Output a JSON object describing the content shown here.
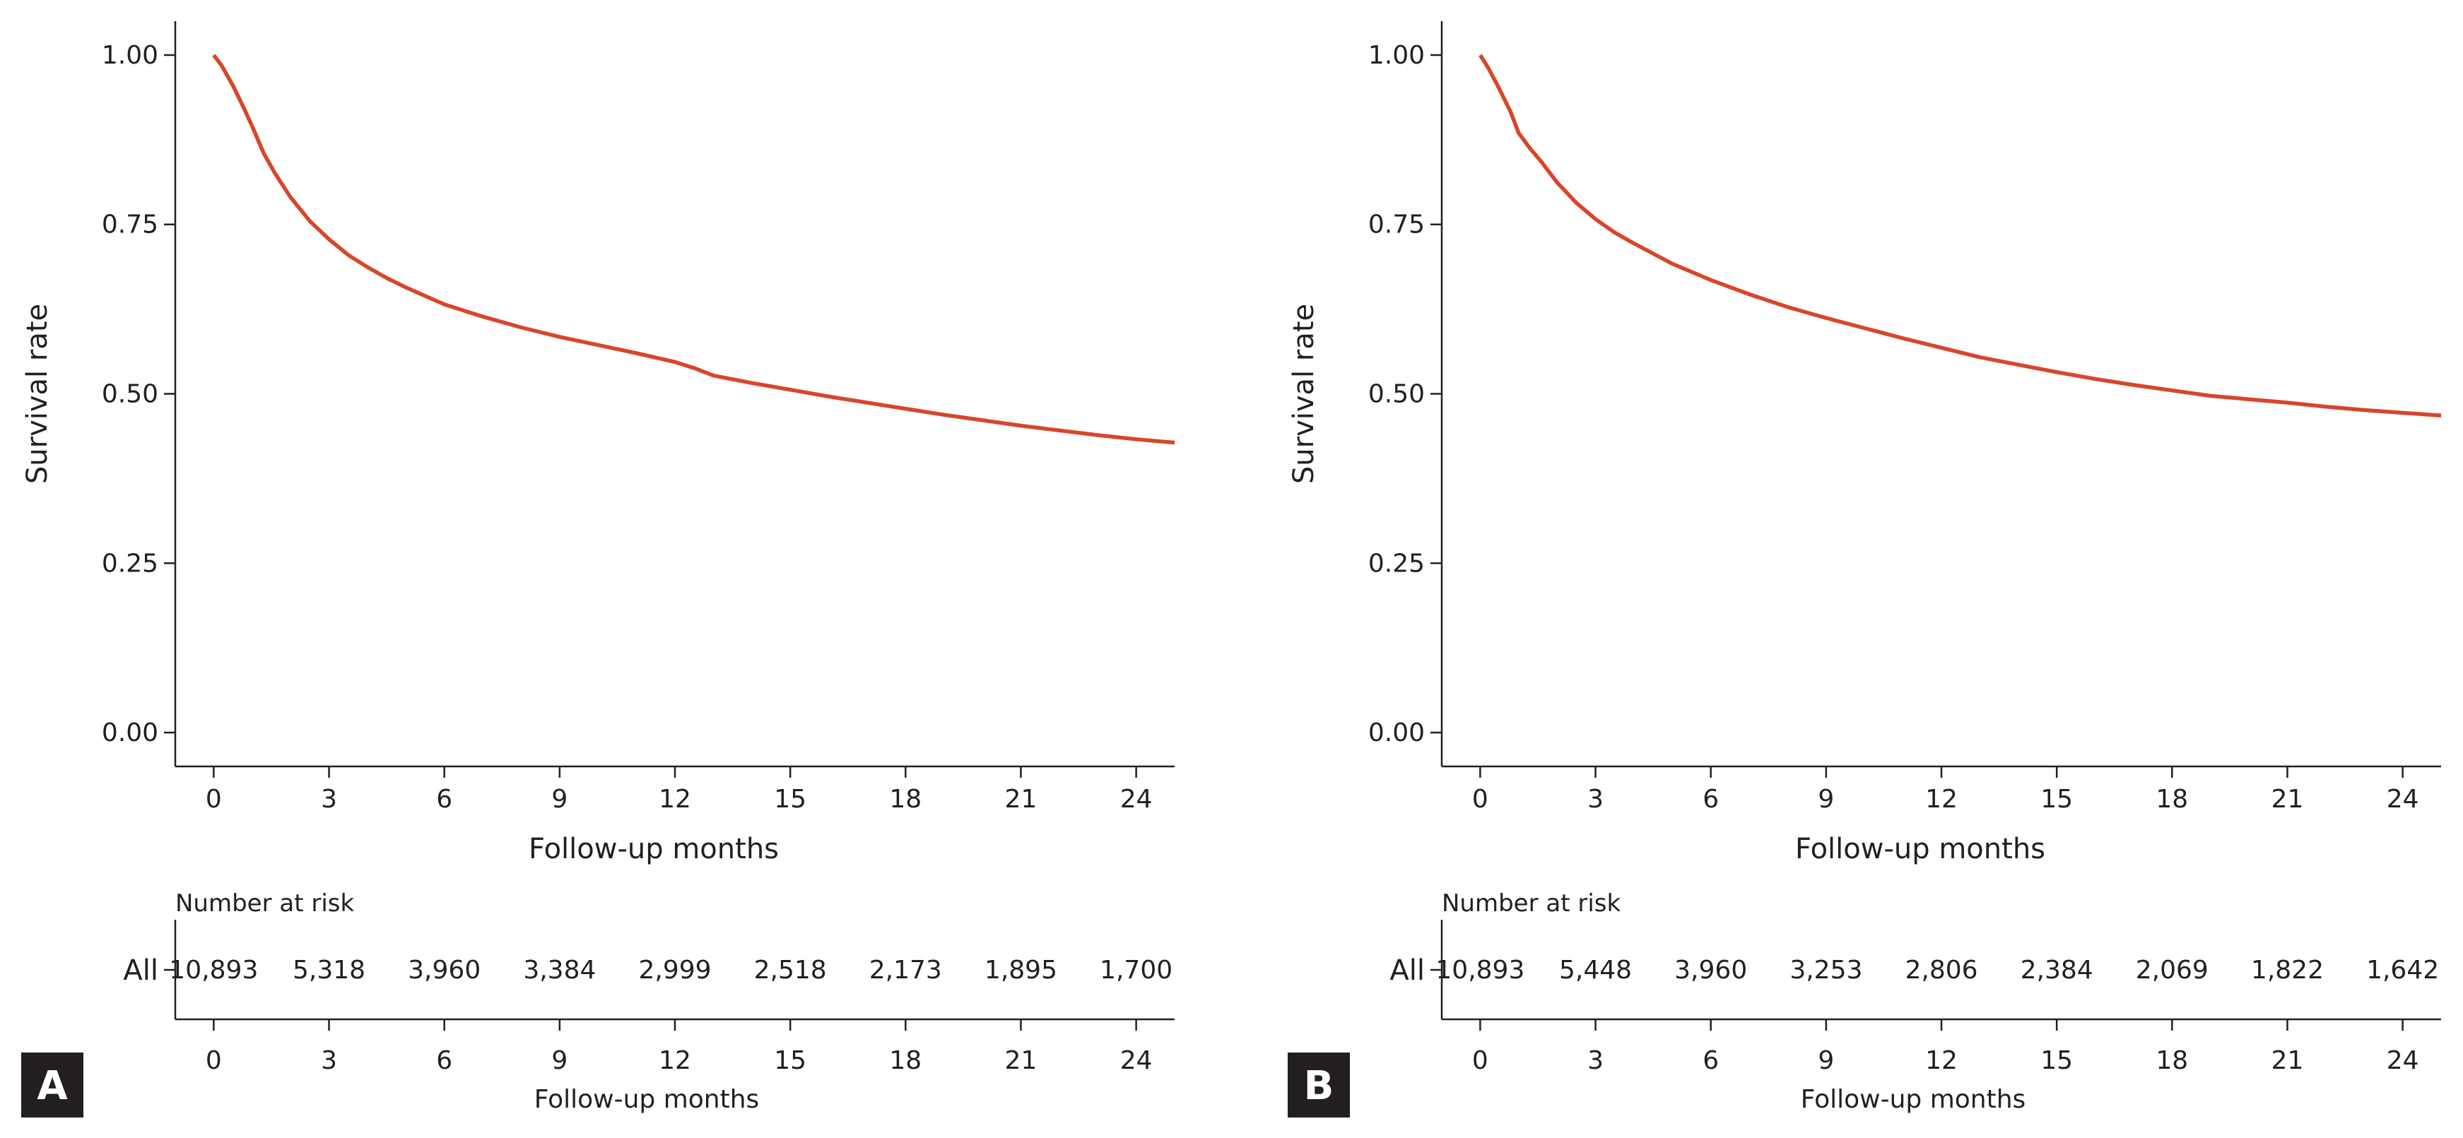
{
  "colors": {
    "curve": "#d8462a",
    "axis": "#231f20",
    "badge_bg": "#231f20",
    "badge_text": "#ffffff"
  },
  "chart_data": [
    {
      "type": "line",
      "panel_label": "A",
      "ylabel": "Survival rate",
      "xlabel": "Follow-up months",
      "xlim": [
        -1,
        25
      ],
      "ylim": [
        -0.05,
        1.05
      ],
      "x_ticks": [
        "0",
        "3",
        "6",
        "9",
        "12",
        "15",
        "18",
        "21",
        "24"
      ],
      "y_ticks": [
        "0.00",
        "0.25",
        "0.50",
        "0.75",
        "1.00"
      ],
      "series": [
        {
          "x": [
            0,
            0.2,
            0.5,
            0.8,
            1,
            1.3,
            1.6,
            2,
            2.5,
            3,
            3.5,
            4,
            4.5,
            5,
            6,
            7,
            8,
            9,
            10,
            11,
            12,
            12.5,
            13,
            14,
            15,
            16,
            17,
            18,
            19,
            20,
            21,
            22,
            23,
            24,
            25
          ],
          "y": [
            1.0,
            0.985,
            0.955,
            0.92,
            0.895,
            0.855,
            0.825,
            0.79,
            0.755,
            0.728,
            0.705,
            0.687,
            0.671,
            0.657,
            0.632,
            0.614,
            0.598,
            0.584,
            0.572,
            0.56,
            0.547,
            0.538,
            0.527,
            0.516,
            0.506,
            0.496,
            0.487,
            0.478,
            0.469,
            0.461,
            0.453,
            0.446,
            0.439,
            0.433,
            0.428
          ]
        }
      ],
      "risk_table": {
        "title": "Number at risk",
        "row_label": "All",
        "values": [
          "10,893",
          "5,318",
          "3,960",
          "3,384",
          "2,999",
          "2,518",
          "2,173",
          "1,895",
          "1,700"
        ],
        "x_ticks": [
          "0",
          "3",
          "6",
          "9",
          "12",
          "15",
          "18",
          "21",
          "24"
        ],
        "xlabel": "Follow-up months"
      }
    },
    {
      "type": "line",
      "panel_label": "B",
      "ylabel": "Survival rate",
      "xlabel": "Follow-up months",
      "xlim": [
        -1,
        25
      ],
      "ylim": [
        -0.05,
        1.05
      ],
      "x_ticks": [
        "0",
        "3",
        "6",
        "9",
        "12",
        "15",
        "18",
        "21",
        "24"
      ],
      "y_ticks": [
        "0.00",
        "0.25",
        "0.50",
        "0.75",
        "1.00"
      ],
      "series": [
        {
          "x": [
            0,
            0.2,
            0.5,
            0.8,
            1,
            1.3,
            1.6,
            2,
            2.5,
            3,
            3.5,
            4,
            4.5,
            5,
            6,
            7,
            8,
            9,
            10,
            11,
            12,
            13,
            14,
            15,
            16,
            17,
            18,
            19,
            20,
            21,
            22,
            23,
            24,
            25
          ],
          "y": [
            1.0,
            0.982,
            0.95,
            0.915,
            0.885,
            0.862,
            0.842,
            0.812,
            0.782,
            0.758,
            0.738,
            0.722,
            0.707,
            0.692,
            0.668,
            0.647,
            0.628,
            0.612,
            0.597,
            0.582,
            0.568,
            0.554,
            0.543,
            0.532,
            0.522,
            0.513,
            0.505,
            0.497,
            0.492,
            0.487,
            0.481,
            0.476,
            0.472,
            0.468
          ]
        }
      ],
      "risk_table": {
        "title": "Number at risk",
        "row_label": "All",
        "values": [
          "10,893",
          "5,448",
          "3,960",
          "3,253",
          "2,806",
          "2,384",
          "2,069",
          "1,822",
          "1,642"
        ],
        "x_ticks": [
          "0",
          "3",
          "6",
          "9",
          "12",
          "15",
          "18",
          "21",
          "24"
        ],
        "xlabel": "Follow-up months"
      }
    }
  ]
}
